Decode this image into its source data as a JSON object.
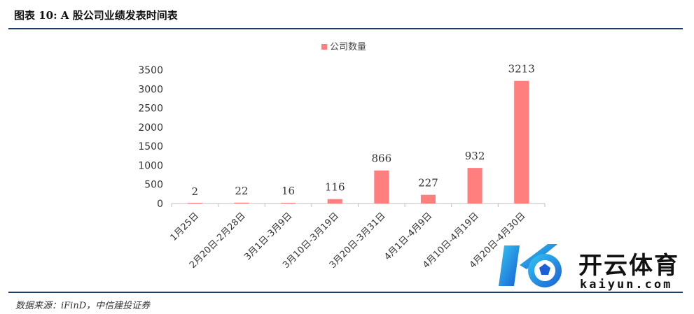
{
  "header": {
    "title": "图表 10: A 股公司业绩发表时间表"
  },
  "footer": {
    "source": "数据来源：iFinD，中信建投证券"
  },
  "watermark": {
    "text_cn": "开云体育",
    "text_en": "kaiyun.com"
  },
  "colors": {
    "bar": "#ff7f7f",
    "axis": "#bfbfbf",
    "rule": "#1f3b66"
  },
  "chart_data": {
    "type": "bar",
    "title": "",
    "xlabel": "",
    "ylabel": "",
    "categories": [
      "1月25日",
      "2月20日-2月28日",
      "3月1日-3月9日",
      "3月10日-3月19日",
      "3月20日-3月31日",
      "4月1日-4月9日",
      "4月10日-4月19日",
      "4月20日-4月30日"
    ],
    "series": [
      {
        "name": "公司数量",
        "values": [
          2,
          22,
          16,
          116,
          866,
          227,
          932,
          3213
        ]
      }
    ],
    "ylim": [
      0,
      3500
    ],
    "yticks": [
      0,
      500,
      1000,
      1500,
      2000,
      2500,
      3000,
      3500
    ],
    "grid": false,
    "legend_position": "top-center",
    "data_labels": true
  }
}
